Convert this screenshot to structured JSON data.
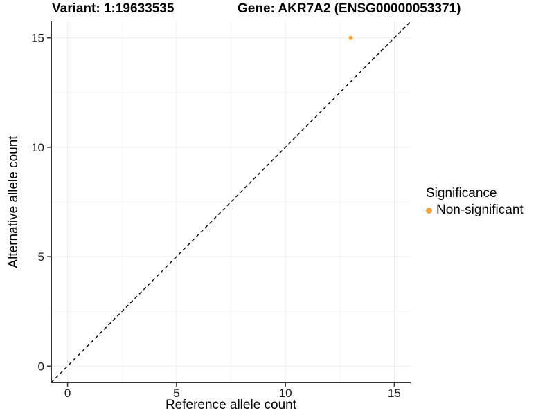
{
  "header": {
    "variant_title": "Variant: 1:19633535",
    "gene_title": "Gene: AKR7A2 (ENSG00000053371)"
  },
  "legend": {
    "title": "Significance",
    "items": [
      {
        "label": "Non-significant",
        "color": "#FAA43A"
      }
    ]
  },
  "chart_data": {
    "type": "scatter",
    "title": "Variant: 1:19633535   Gene: AKR7A2 (ENSG00000053371)",
    "xlabel": "Reference allele count",
    "ylabel": "Alternative allele count",
    "xlim": [
      -0.75,
      15.75
    ],
    "ylim": [
      -0.75,
      15.75
    ],
    "xticks": [
      0,
      5,
      10,
      15
    ],
    "yticks": [
      0,
      5,
      10,
      15
    ],
    "x_minor_ticks": [
      2.5,
      7.5,
      12.5
    ],
    "y_minor_ticks": [
      2.5,
      7.5,
      12.5
    ],
    "grid": "major+minor",
    "legend_position": "right",
    "identity_line": {
      "style": "dashed",
      "from": [
        -0.75,
        -0.75
      ],
      "to": [
        15.75,
        15.75
      ]
    },
    "series": [
      {
        "name": "Non-significant",
        "color": "#FAA43A",
        "points": [
          [
            13,
            15
          ]
        ]
      }
    ]
  },
  "colors": {
    "background": "#FFFFFF",
    "grid_major": "#EBEBEB",
    "grid_minor": "#F5F5F5",
    "axis_line": "#333333",
    "tick_mark": "#333333",
    "tick_label": "#1A1A1A",
    "identity_line": "#000000",
    "point": "#FAA43A"
  }
}
